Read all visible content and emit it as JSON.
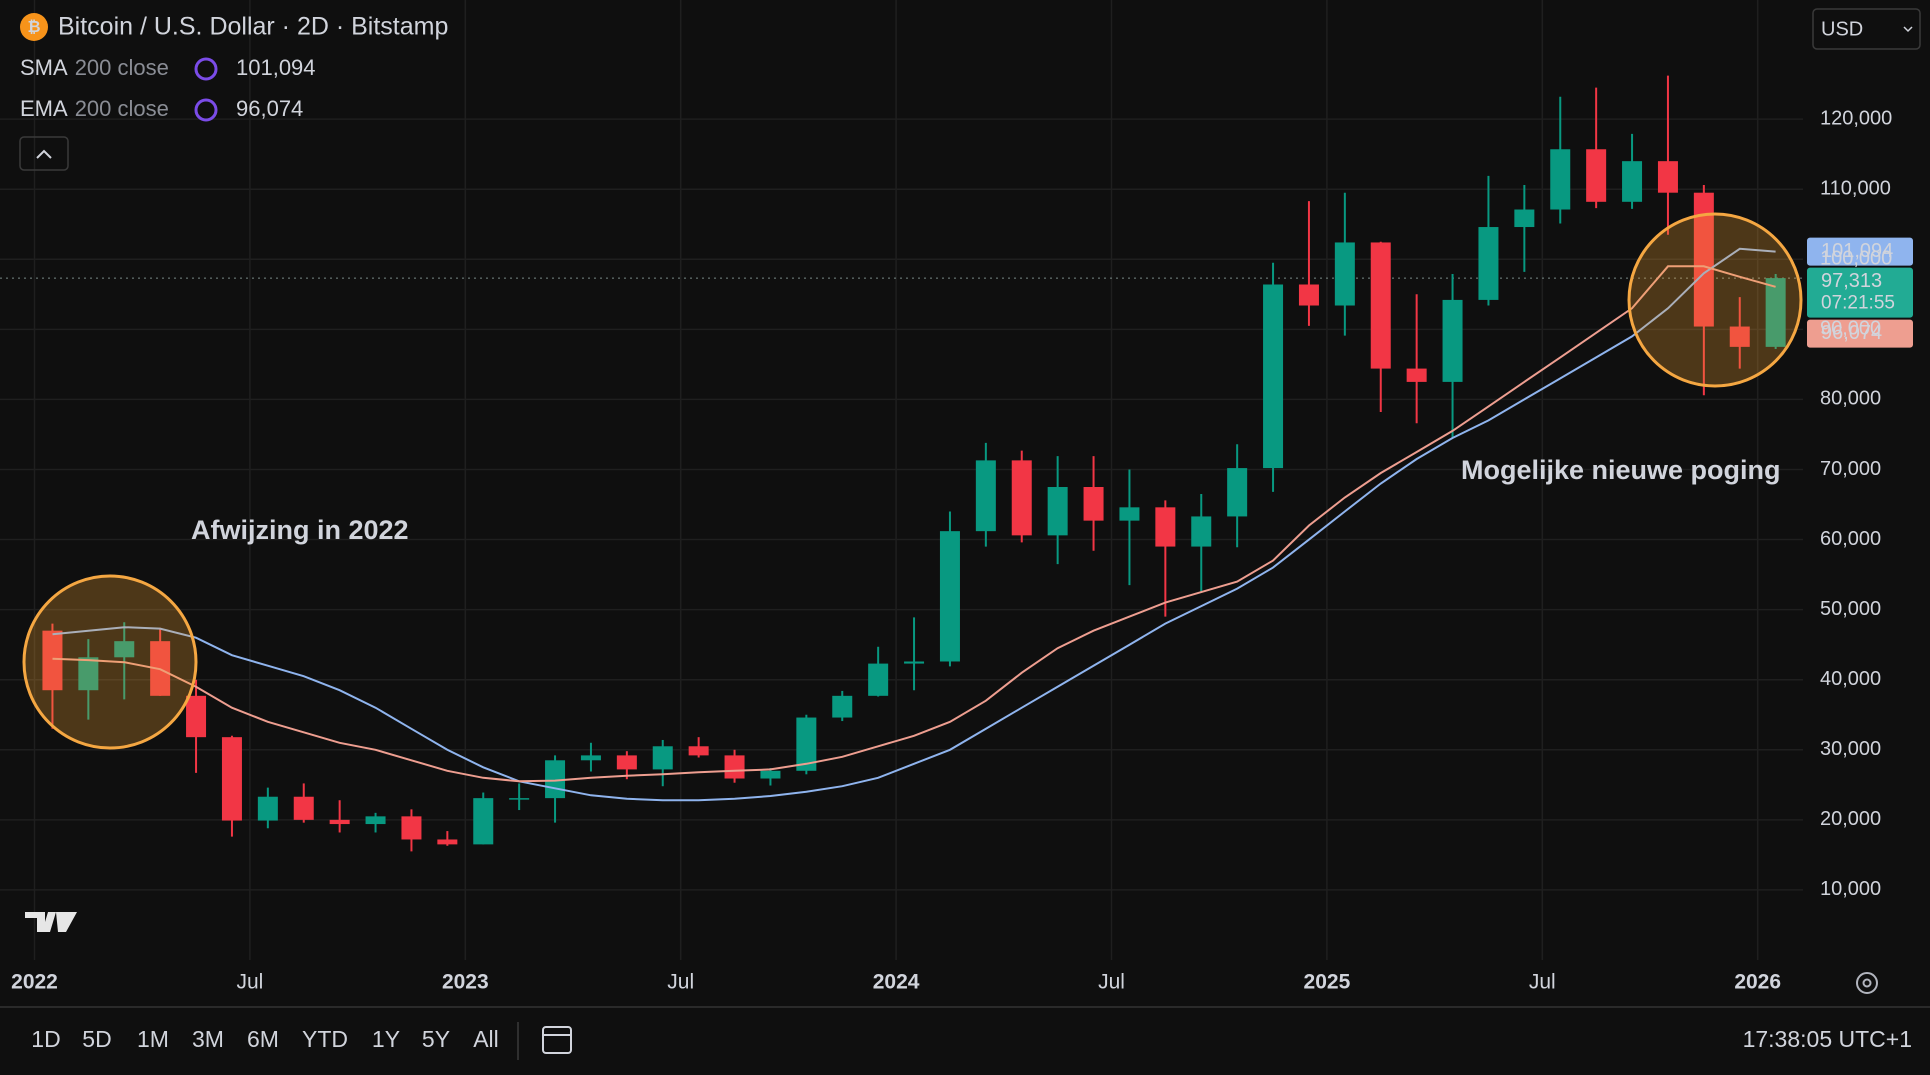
{
  "header": {
    "title": "Bitcoin / U.S. Dollar · 2D · Bitstamp",
    "currency": "USD",
    "clock": "17:38:05 UTC+1"
  },
  "toolbar": {
    "ranges": [
      "1D",
      "5D",
      "1M",
      "3M",
      "6M",
      "YTD",
      "1Y",
      "5Y",
      "All"
    ]
  },
  "chart_data": {
    "type": "candlestick",
    "x": [
      "2022-01",
      "2022-02",
      "2022-03",
      "2022-04",
      "2022-05",
      "2022-06",
      "2022-07",
      "2022-08",
      "2022-09",
      "2022-10",
      "2022-11",
      "2022-12",
      "2023-01",
      "2023-02",
      "2023-03",
      "2023-04",
      "2023-05",
      "2023-06",
      "2023-07",
      "2023-08",
      "2023-09",
      "2023-10",
      "2023-11",
      "2023-12",
      "2024-01",
      "2024-02",
      "2024-03",
      "2024-04",
      "2024-05",
      "2024-06",
      "2024-07",
      "2024-08",
      "2024-09",
      "2024-10",
      "2024-11",
      "2024-12",
      "2025-01",
      "2025-02",
      "2025-03",
      "2025-04",
      "2025-05",
      "2025-06",
      "2025-07",
      "2025-08",
      "2025-09",
      "2025-10",
      "2025-11",
      "2025-12",
      "2026-01"
    ],
    "open": [
      47000,
      38500,
      43200,
      45500,
      37700,
      31800,
      19900,
      23300,
      20000,
      19400,
      20500,
      17200,
      16500,
      23100,
      23100,
      28500,
      29200,
      27200,
      30500,
      29200,
      25900,
      27000,
      34600,
      37700,
      42300,
      42600,
      61200,
      71300,
      60600,
      67500,
      62700,
      64600,
      59000,
      63300,
      70200,
      96400,
      93400,
      102400,
      84400,
      82500,
      94200,
      104600,
      107100,
      115700,
      108200,
      114000,
      109500,
      90400,
      87500
    ],
    "high": [
      48000,
      45800,
      48200,
      47400,
      40000,
      32000,
      24600,
      25200,
      22800,
      21000,
      21500,
      18400,
      23900,
      25200,
      29200,
      31000,
      29800,
      31400,
      31800,
      30000,
      27400,
      35000,
      38400,
      44700,
      48900,
      64000,
      73800,
      72700,
      71900,
      71900,
      70000,
      65600,
      66500,
      73600,
      99500,
      108300,
      109500,
      102500,
      95000,
      97900,
      111900,
      110600,
      123200,
      124500,
      117900,
      126200,
      110600,
      94600,
      97900
    ],
    "low": [
      33000,
      34300,
      37200,
      37700,
      26700,
      17600,
      18800,
      19600,
      18200,
      18200,
      15500,
      16300,
      16500,
      21400,
      19600,
      26900,
      25800,
      24800,
      28900,
      25300,
      24900,
      26500,
      34100,
      37600,
      38500,
      41900,
      59000,
      59600,
      56500,
      58400,
      53500,
      49000,
      52600,
      58900,
      66800,
      90500,
      89100,
      78200,
      76600,
      74500,
      93400,
      98200,
      105100,
      107300,
      107200,
      103500,
      80600,
      84400,
      87200
    ],
    "close": [
      38500,
      43200,
      45500,
      37700,
      31800,
      19900,
      23300,
      20000,
      19400,
      20500,
      17200,
      16500,
      23100,
      23100,
      28500,
      29200,
      27200,
      30500,
      29200,
      25900,
      27000,
      34600,
      37700,
      42300,
      42600,
      61200,
      71300,
      60600,
      67500,
      62700,
      64600,
      59000,
      63300,
      70200,
      96400,
      93400,
      102400,
      84400,
      82500,
      94200,
      104600,
      107100,
      115700,
      108200,
      114000,
      109500,
      90400,
      87500,
      97313
    ],
    "up_color": "#089981",
    "down_color": "#f23645",
    "series": [
      {
        "name": "SMA",
        "params": "200 close",
        "color": "#8fb4ee",
        "last_label": "101,094",
        "values": [
          46500,
          47000,
          47500,
          47300,
          46000,
          43500,
          42000,
          40500,
          38500,
          36000,
          33000,
          30000,
          27500,
          25500,
          24500,
          23500,
          23000,
          22800,
          22800,
          23000,
          23400,
          24000,
          24800,
          26000,
          28000,
          30000,
          33000,
          36000,
          39000,
          42000,
          45000,
          48000,
          50500,
          53000,
          56000,
          60000,
          64000,
          68000,
          71500,
          74500,
          77000,
          80000,
          83000,
          86000,
          89000,
          93000,
          98000,
          101500,
          101094
        ]
      },
      {
        "name": "EMA",
        "params": "200 close",
        "color": "#ee9e90",
        "last_label": "96,074",
        "values": [
          43000,
          42800,
          42500,
          41500,
          39000,
          36000,
          34000,
          32500,
          31000,
          30000,
          28500,
          27000,
          26000,
          25500,
          25600,
          26000,
          26300,
          26500,
          26800,
          27000,
          27200,
          28000,
          29000,
          30500,
          32000,
          34000,
          37000,
          41000,
          44500,
          47000,
          49000,
          51000,
          52500,
          54000,
          57000,
          62000,
          66000,
          69500,
          72500,
          75500,
          79000,
          82500,
          86000,
          89500,
          93000,
          99000,
          99000,
          97500,
          96074
        ]
      }
    ],
    "price_line": {
      "value": 97313,
      "label": "97,313",
      "countdown": "07:21:55",
      "color": "#22ab94"
    },
    "ylim": [
      0,
      137000
    ],
    "yticks": [
      {
        "value": 10000,
        "label": "10,000"
      },
      {
        "value": 20000,
        "label": "20,000"
      },
      {
        "value": 30000,
        "label": "30,000"
      },
      {
        "value": 40000,
        "label": "40,000"
      },
      {
        "value": 50000,
        "label": "50,000"
      },
      {
        "value": 60000,
        "label": "60,000"
      },
      {
        "value": 70000,
        "label": "70,000"
      },
      {
        "value": 80000,
        "label": "80,000"
      },
      {
        "value": 90000,
        "label": "90,000"
      },
      {
        "value": 100000,
        "label": "100,000"
      },
      {
        "value": 110000,
        "label": "110,000"
      },
      {
        "value": 120000,
        "label": "120,000"
      }
    ],
    "xticks": [
      {
        "value": "2022-01",
        "label": "2022"
      },
      {
        "value": "2022-07",
        "label": "Jul"
      },
      {
        "value": "2023-01",
        "label": "2023"
      },
      {
        "value": "2023-07",
        "label": "Jul"
      },
      {
        "value": "2024-01",
        "label": "2024"
      },
      {
        "value": "2024-07",
        "label": "Jul"
      },
      {
        "value": "2025-01",
        "label": "2025"
      },
      {
        "value": "2025-07",
        "label": "Jul"
      },
      {
        "value": "2026-01",
        "label": "2026"
      }
    ],
    "grid": true,
    "annotations": [
      "Afwijzing in 2022",
      "Mogelijke nieuwe poging"
    ]
  }
}
